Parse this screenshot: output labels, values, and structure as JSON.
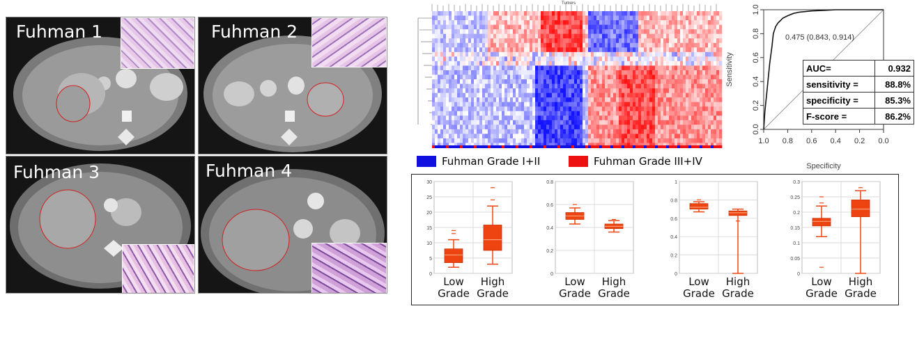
{
  "ct_panels": [
    {
      "label": "Fuhman 1"
    },
    {
      "label": "Fuhman 2"
    },
    {
      "label": "Fuhman 3"
    },
    {
      "label": "Fuhman 4"
    }
  ],
  "heatmap": {
    "title": "Tumors",
    "legend": [
      {
        "label": "Fuhman Grade I+II",
        "color": "#1010e0"
      },
      {
        "label": "Fuhman Grade III+IV",
        "color": "#ee1111"
      }
    ]
  },
  "roc": {
    "annotation": "0.475 (0.843, 0.914)",
    "ylabel": "Sensitivity",
    "xlabel": "Specificity",
    "table": [
      {
        "name": "AUC=",
        "value": "0.932"
      },
      {
        "name": "sensitivity =",
        "value": "88.8%"
      },
      {
        "name": "specificity =",
        "value": "85.3%"
      },
      {
        "name": "F-score =",
        "value": "86.2%"
      }
    ]
  },
  "box_labels": {
    "low": [
      "Low",
      "Grade"
    ],
    "high": [
      "High",
      "Grade"
    ]
  },
  "chart_data": [
    {
      "type": "line",
      "title": "",
      "xlabel": "Specificity",
      "ylabel": "Sensitivity",
      "xlim": [
        1.0,
        0.0
      ],
      "ylim": [
        0.0,
        1.0
      ],
      "x_ticks": [
        "1.0",
        "0.8",
        "0.6",
        "0.4",
        "0.2",
        "0.0"
      ],
      "y_ticks": [
        "0.0",
        "0.2",
        "0.4",
        "0.6",
        "0.8",
        "1.0"
      ],
      "series": [
        {
          "x": [
            1.0,
            0.99,
            0.97,
            0.95,
            0.93,
            0.92,
            0.9,
            0.88,
            0.86,
            0.84,
            0.8,
            0.75,
            0.7,
            0.6,
            0.5,
            0.4,
            0.3,
            0.2,
            0.1,
            0.0
          ],
          "y": [
            0.0,
            0.15,
            0.35,
            0.55,
            0.7,
            0.8,
            0.86,
            0.89,
            0.91,
            0.93,
            0.95,
            0.97,
            0.98,
            0.99,
            0.995,
            1.0,
            1.0,
            1.0,
            1.0,
            1.0
          ]
        }
      ],
      "grid": false
    },
    {
      "type": "box",
      "ylim": [
        0,
        30
      ],
      "y_ticks": [
        "0",
        "5",
        "10",
        "15",
        "20",
        "25",
        "30"
      ],
      "boxes": [
        {
          "group": "Low Grade",
          "min": 2,
          "q1": 3.5,
          "median": 6,
          "q3": 8,
          "max": 11,
          "outliers": [
            13,
            14
          ]
        },
        {
          "group": "High Grade",
          "min": 3,
          "q1": 7.5,
          "median": 11,
          "q3": 15.8,
          "max": 22,
          "outliers": [
            24,
            28
          ]
        }
      ]
    },
    {
      "type": "box",
      "ylim": [
        0,
        0.8
      ],
      "y_ticks": [
        "0",
        "0.2",
        "0.4",
        "0.6",
        "0.8"
      ],
      "boxes": [
        {
          "group": "Low Grade",
          "min": 0.43,
          "q1": 0.47,
          "median": 0.5,
          "q3": 0.53,
          "max": 0.57,
          "outliers": [
            0.6
          ]
        },
        {
          "group": "High Grade",
          "min": 0.36,
          "q1": 0.39,
          "median": 0.41,
          "q3": 0.43,
          "max": 0.46,
          "outliers": [
            0.47
          ]
        }
      ]
    },
    {
      "type": "box",
      "ylim": [
        0,
        1
      ],
      "y_ticks": [
        "0",
        "0.2",
        "0.4",
        "0.6",
        "0.8",
        "1"
      ],
      "boxes": [
        {
          "group": "Low Grade",
          "min": 0.67,
          "q1": 0.7,
          "median": 0.72,
          "q3": 0.76,
          "max": 0.78,
          "outliers": [
            0.8
          ]
        },
        {
          "group": "High Grade",
          "min": 0.0,
          "q1": 0.63,
          "median": 0.66,
          "q3": 0.68,
          "max": 0.7,
          "outliers": [
            0.57
          ]
        }
      ]
    },
    {
      "type": "box",
      "ylim": [
        0,
        0.3
      ],
      "y_ticks": [
        "0",
        "0.05",
        "0.1",
        "0.15",
        "0.2",
        "0.25",
        "0.3"
      ],
      "boxes": [
        {
          "group": "Low Grade",
          "min": 0.12,
          "q1": 0.155,
          "median": 0.17,
          "q3": 0.18,
          "max": 0.22,
          "outliers": [
            0.02,
            0.23,
            0.25
          ]
        },
        {
          "group": "High Grade",
          "min": 0.0,
          "q1": 0.185,
          "median": 0.21,
          "q3": 0.24,
          "max": 0.27,
          "outliers": [
            0.28
          ]
        }
      ]
    }
  ]
}
